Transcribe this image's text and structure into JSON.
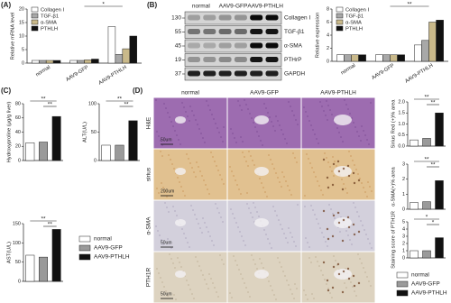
{
  "panel_labels": [
    "(A)",
    "(B)",
    "(C)",
    "(D)"
  ],
  "chart_data": [
    {
      "type": "bar",
      "ylabel": "Relative mRNA level",
      "categories": [
        "normal",
        "AAV9-GFP",
        "AAV9-PTHLH"
      ],
      "series": [
        {
          "name": "Collagen I",
          "color": "#ffffff",
          "values": [
            1,
            1,
            13.5
          ]
        },
        {
          "name": "TGF-β1",
          "color": "#a8a8a8",
          "values": [
            1,
            1,
            3.2
          ]
        },
        {
          "name": "α-SMA",
          "color": "#c9b98a",
          "values": [
            1,
            1.2,
            5.3
          ]
        },
        {
          "name": "PTHLH",
          "color": "#111111",
          "values": [
            1,
            1.5,
            10
          ]
        }
      ],
      "ylim": [
        0,
        20
      ],
      "yticks": [
        0,
        5,
        10,
        15,
        20
      ],
      "legend": "upper left",
      "annotations": [
        "*"
      ]
    },
    {
      "type": "bar",
      "ylabel": "Relative expression",
      "categories": [
        "normal",
        "AAV9-GFP",
        "AAV9-PTHLH"
      ],
      "series": [
        {
          "name": "Collagen I",
          "color": "#ffffff",
          "values": [
            1,
            1,
            2.5
          ]
        },
        {
          "name": "TGF-β1",
          "color": "#a8a8a8",
          "values": [
            1,
            1,
            3.2
          ]
        },
        {
          "name": "α-SMA",
          "color": "#c9b98a",
          "values": [
            1,
            1,
            6
          ]
        },
        {
          "name": "PTHLH",
          "color": "#111111",
          "values": [
            1,
            1,
            6.3
          ]
        }
      ],
      "ylim": [
        0,
        8
      ],
      "yticks": [
        0,
        2,
        4,
        6,
        8
      ],
      "legend": "upper left",
      "annotations": [
        "**"
      ]
    },
    {
      "type": "bar",
      "ylabel": "Hydroxyproline (μg/g liver)",
      "values": [
        25,
        26,
        62
      ],
      "colors": [
        "#ffffff",
        "#9a9a9a",
        "#111111"
      ],
      "ylim": [
        0,
        80
      ],
      "yticks": [
        0,
        20,
        40,
        60,
        80
      ],
      "annotations": [
        "**",
        "**"
      ]
    },
    {
      "type": "bar",
      "ylabel": "ALT(U/L)",
      "values": [
        27,
        27,
        70
      ],
      "colors": [
        "#ffffff",
        "#9a9a9a",
        "#111111"
      ],
      "ylim": [
        0,
        100
      ],
      "yticks": [
        0,
        50,
        100
      ],
      "annotations": [
        "**",
        "**"
      ]
    },
    {
      "type": "bar",
      "ylabel": "AST(U/L)",
      "values": [
        68,
        63,
        135
      ],
      "colors": [
        "#ffffff",
        "#9a9a9a",
        "#111111"
      ],
      "ylim": [
        0,
        150
      ],
      "yticks": [
        0,
        50,
        100,
        150
      ],
      "annotations": [
        "**",
        "**"
      ]
    },
    {
      "type": "bar",
      "ylabel": "Sirius Red (+)% area",
      "values": [
        0.28,
        0.35,
        1.5
      ],
      "colors": [
        "#ffffff",
        "#9a9a9a",
        "#111111"
      ],
      "ylim": [
        0,
        2
      ],
      "yticks": [
        {
          "value": 0,
          "label": "0.0"
        },
        {
          "value": 0.5,
          "label": "0.5"
        },
        {
          "value": 1,
          "label": "1.0"
        },
        {
          "value": 1.5,
          "label": "1.5"
        },
        {
          "value": 2,
          "label": "2.0"
        }
      ],
      "annotations": [
        "**",
        "**"
      ]
    },
    {
      "type": "bar",
      "ylabel": "α-SMA(+)% area",
      "values": [
        0.45,
        0.5,
        1.9
      ],
      "colors": [
        "#ffffff",
        "#9a9a9a",
        "#111111"
      ],
      "ylim": [
        0,
        3
      ],
      "yticks": [
        0,
        1,
        2,
        3
      ],
      "annotations": [
        "**",
        "**"
      ]
    },
    {
      "type": "bar",
      "ylabel": "Staining score of PTH1R",
      "values": [
        1,
        1,
        2.8
      ],
      "colors": [
        "#ffffff",
        "#9a9a9a",
        "#111111"
      ],
      "ylim": [
        0,
        5
      ],
      "yticks": [
        0,
        1,
        2,
        3,
        4,
        5
      ],
      "annotations": [
        "*",
        "*"
      ]
    }
  ],
  "legend_c": {
    "labels": [
      "normal",
      "AAV9-GFP",
      "AAV9-PTHLH"
    ]
  },
  "legend_d": {
    "labels": [
      "normal",
      "AAV9-GFP",
      "AAV9-PTHLH"
    ]
  },
  "blot": {
    "columns": [
      "normal",
      "AAV9-GFP",
      "AAV9-PTHLH"
    ],
    "markers": [
      130,
      55,
      45,
      19,
      37
    ],
    "proteins": [
      "Collagen I",
      "TGF-β1",
      "α-SMA",
      "PTHrP",
      "GAPDH"
    ]
  },
  "histology": {
    "columns": [
      "normal",
      "AAV9-GFP",
      "AAV9-PTHLH"
    ],
    "rows": [
      "H&E",
      "sirius",
      "α-SMA",
      "PTH1R"
    ],
    "scale_bars": [
      "50um",
      "200um",
      "50um",
      "50um"
    ]
  }
}
